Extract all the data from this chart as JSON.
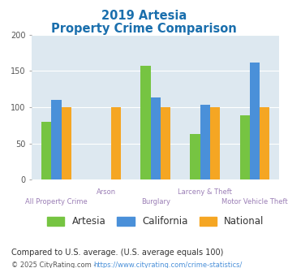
{
  "title_line1": "2019 Artesia",
  "title_line2": "Property Crime Comparison",
  "categories": [
    "All Property Crime",
    "Arson",
    "Burglary",
    "Larceny & Theft",
    "Motor Vehicle Theft"
  ],
  "series": {
    "Artesia": [
      80,
      0,
      157,
      63,
      89
    ],
    "California": [
      110,
      0,
      113,
      103,
      162
    ],
    "National": [
      100,
      100,
      100,
      100,
      100
    ]
  },
  "colors": {
    "Artesia": "#76c442",
    "California": "#4a90d9",
    "National": "#f5a623"
  },
  "ylim": [
    0,
    200
  ],
  "yticks": [
    0,
    50,
    100,
    150,
    200
  ],
  "title_color": "#1a6fad",
  "axis_label_color": "#9b7fb6",
  "legend_fontsize": 8.5,
  "footnote1": "Compared to U.S. average. (U.S. average equals 100)",
  "footnote1_color": "#333333",
  "footnote2_text": "© 2025 CityRating.com - ",
  "footnote2_url": "https://www.cityrating.com/crime-statistics/",
  "footnote2_color": "#555555",
  "footnote2_url_color": "#4a90d9",
  "bg_color": "#dde8f0",
  "fig_bg_color": "#ffffff"
}
